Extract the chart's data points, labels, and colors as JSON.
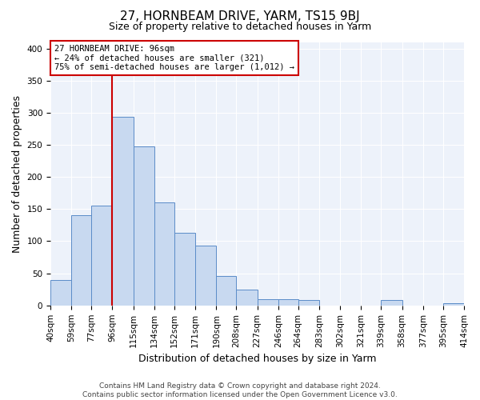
{
  "title": "27, HORNBEAM DRIVE, YARM, TS15 9BJ",
  "subtitle": "Size of property relative to detached houses in Yarm",
  "xlabel": "Distribution of detached houses by size in Yarm",
  "ylabel": "Number of detached properties",
  "bin_labels": [
    "40sqm",
    "59sqm",
    "77sqm",
    "96sqm",
    "115sqm",
    "134sqm",
    "152sqm",
    "171sqm",
    "190sqm",
    "208sqm",
    "227sqm",
    "246sqm",
    "264sqm",
    "283sqm",
    "302sqm",
    "321sqm",
    "339sqm",
    "358sqm",
    "377sqm",
    "395sqm",
    "414sqm"
  ],
  "bin_edges": [
    40,
    59,
    77,
    96,
    115,
    134,
    152,
    171,
    190,
    208,
    227,
    246,
    264,
    283,
    302,
    321,
    339,
    358,
    377,
    395,
    414
  ],
  "bar_heights": [
    40,
    140,
    155,
    293,
    248,
    160,
    113,
    93,
    46,
    25,
    10,
    10,
    8,
    0,
    0,
    0,
    8,
    0,
    0,
    3
  ],
  "bar_color": "#c8d9f0",
  "bar_edge_color": "#5b8cc8",
  "vline_x": 96,
  "vline_color": "#cc0000",
  "ylim": [
    0,
    410
  ],
  "yticks": [
    0,
    50,
    100,
    150,
    200,
    250,
    300,
    350,
    400
  ],
  "annotation_line1": "27 HORNBEAM DRIVE: 96sqm",
  "annotation_line2": "← 24% of detached houses are smaller (321)",
  "annotation_line3": "75% of semi-detached houses are larger (1,012) →",
  "annotation_box_color": "#cc0000",
  "footer_line1": "Contains HM Land Registry data © Crown copyright and database right 2024.",
  "footer_line2": "Contains public sector information licensed under the Open Government Licence v3.0.",
  "bg_color": "#edf2fa",
  "title_fontsize": 11,
  "subtitle_fontsize": 9,
  "xlabel_fontsize": 9,
  "ylabel_fontsize": 9,
  "tick_fontsize": 7.5,
  "annot_fontsize": 7.5,
  "footer_fontsize": 6.5
}
